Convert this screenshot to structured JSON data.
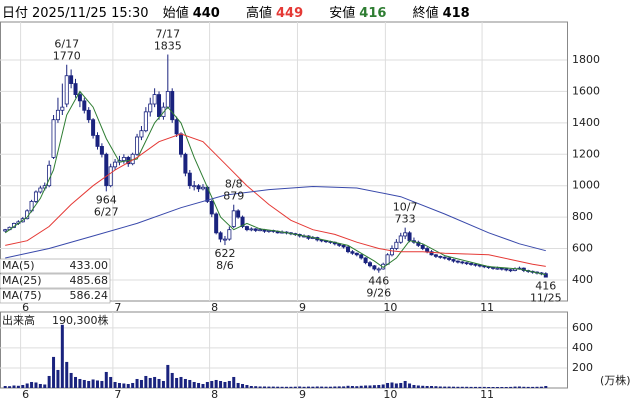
{
  "header": {
    "date_label": "日付",
    "date": "2025/11/25 15:30",
    "open_label": "始値",
    "open": "440",
    "high_label": "高値",
    "high": "449",
    "low_label": "安値",
    "low": "416",
    "close_label": "終値",
    "close": "418"
  },
  "chart_data": [
    {
      "type": "candlestick",
      "ylim": [
        266,
        2042
      ],
      "yticks": [
        400,
        600,
        800,
        1000,
        1200,
        1400,
        1600,
        1800
      ],
      "grid": true,
      "xticks": [
        {
          "value": 4,
          "label": "6"
        },
        {
          "value": 25,
          "label": "7"
        },
        {
          "value": 47,
          "label": "8"
        },
        {
          "value": 67,
          "label": "9"
        },
        {
          "value": 87,
          "label": "10"
        },
        {
          "value": 109,
          "label": "11"
        }
      ],
      "up_color": "#ffffff",
      "down_color": "#1a237e",
      "candles": [
        [
          712,
          725,
          705,
          720
        ],
        [
          720,
          740,
          715,
          735
        ],
        [
          735,
          765,
          730,
          760
        ],
        [
          760,
          780,
          750,
          770
        ],
        [
          770,
          800,
          765,
          790
        ],
        [
          790,
          850,
          785,
          840
        ],
        [
          840,
          910,
          830,
          900
        ],
        [
          900,
          970,
          890,
          960
        ],
        [
          960,
          1000,
          950,
          985
        ],
        [
          985,
          1020,
          970,
          1000
        ],
        [
          1000,
          1160,
          990,
          1130
        ],
        [
          1180,
          1450,
          1170,
          1420
        ],
        [
          1420,
          1560,
          1400,
          1480
        ],
        [
          1480,
          1650,
          1450,
          1500
        ],
        [
          1520,
          1770,
          1500,
          1700
        ],
        [
          1700,
          1740,
          1620,
          1650
        ],
        [
          1650,
          1680,
          1560,
          1580
        ],
        [
          1580,
          1600,
          1500,
          1540
        ],
        [
          1540,
          1560,
          1460,
          1480
        ],
        [
          1480,
          1500,
          1400,
          1420
        ],
        [
          1420,
          1430,
          1300,
          1320
        ],
        [
          1320,
          1340,
          1230,
          1250
        ],
        [
          1250,
          1270,
          1180,
          1200
        ],
        [
          1200,
          1210,
          964,
          1000
        ],
        [
          1000,
          1140,
          990,
          1120
        ],
        [
          1120,
          1170,
          1100,
          1150
        ],
        [
          1150,
          1190,
          1130,
          1160
        ],
        [
          1160,
          1200,
          1140,
          1180
        ],
        [
          1180,
          1190,
          1120,
          1140
        ],
        [
          1140,
          1210,
          1130,
          1200
        ],
        [
          1200,
          1330,
          1190,
          1310
        ],
        [
          1310,
          1380,
          1290,
          1350
        ],
        [
          1350,
          1500,
          1340,
          1470
        ],
        [
          1470,
          1560,
          1440,
          1520
        ],
        [
          1520,
          1620,
          1500,
          1580
        ],
        [
          1580,
          1600,
          1420,
          1440
        ],
        [
          1440,
          1530,
          1420,
          1500
        ],
        [
          1500,
          1835,
          1490,
          1600
        ],
        [
          1600,
          1620,
          1400,
          1420
        ],
        [
          1420,
          1440,
          1310,
          1330
        ],
        [
          1330,
          1340,
          1180,
          1200
        ],
        [
          1200,
          1210,
          1060,
          1080
        ],
        [
          1080,
          1100,
          980,
          1000
        ],
        [
          1000,
          1030,
          970,
          1000
        ],
        [
          1000,
          1010,
          960,
          980
        ],
        [
          980,
          1010,
          970,
          990
        ],
        [
          990,
          1000,
          890,
          900
        ],
        [
          900,
          910,
          800,
          820
        ],
        [
          820,
          830,
          690,
          700
        ],
        [
          700,
          710,
          640,
          660
        ],
        [
          660,
          680,
          622,
          660
        ],
        [
          660,
          740,
          650,
          720
        ],
        [
          740,
          879,
          730,
          840
        ],
        [
          840,
          850,
          790,
          800
        ],
        [
          800,
          810,
          730,
          740
        ],
        [
          740,
          745,
          710,
          720
        ],
        [
          720,
          735,
          710,
          725
        ],
        [
          725,
          730,
          705,
          715
        ],
        [
          715,
          730,
          710,
          720
        ],
        [
          720,
          725,
          700,
          710
        ],
        [
          710,
          720,
          700,
          715
        ],
        [
          715,
          720,
          700,
          710
        ],
        [
          710,
          715,
          695,
          700
        ],
        [
          700,
          715,
          695,
          705
        ],
        [
          705,
          710,
          690,
          700
        ],
        [
          700,
          705,
          685,
          695
        ],
        [
          695,
          700,
          680,
          690
        ],
        [
          690,
          695,
          670,
          680
        ],
        [
          680,
          690,
          670,
          680
        ],
        [
          680,
          685,
          655,
          665
        ],
        [
          665,
          680,
          660,
          670
        ],
        [
          670,
          675,
          645,
          655
        ],
        [
          655,
          660,
          640,
          650
        ],
        [
          650,
          655,
          635,
          645
        ],
        [
          645,
          650,
          630,
          640
        ],
        [
          640,
          645,
          620,
          630
        ],
        [
          630,
          635,
          610,
          620
        ],
        [
          620,
          625,
          600,
          610
        ],
        [
          610,
          615,
          570,
          580
        ],
        [
          580,
          590,
          560,
          570
        ],
        [
          570,
          575,
          550,
          560
        ],
        [
          560,
          565,
          530,
          540
        ],
        [
          540,
          545,
          500,
          510
        ],
        [
          510,
          520,
          480,
          490
        ],
        [
          490,
          495,
          460,
          470
        ],
        [
          470,
          480,
          446,
          470
        ],
        [
          470,
          510,
          465,
          500
        ],
        [
          500,
          570,
          495,
          560
        ],
        [
          560,
          620,
          550,
          600
        ],
        [
          600,
          660,
          590,
          640
        ],
        [
          640,
          700,
          630,
          680
        ],
        [
          680,
          733,
          660,
          700
        ],
        [
          700,
          710,
          640,
          650
        ],
        [
          650,
          670,
          630,
          640
        ],
        [
          640,
          650,
          610,
          620
        ],
        [
          620,
          630,
          590,
          600
        ],
        [
          600,
          610,
          570,
          580
        ],
        [
          580,
          590,
          555,
          560
        ],
        [
          560,
          565,
          540,
          550
        ],
        [
          550,
          555,
          535,
          545
        ],
        [
          545,
          550,
          530,
          540
        ],
        [
          540,
          545,
          520,
          530
        ],
        [
          530,
          535,
          510,
          520
        ],
        [
          520,
          525,
          505,
          515
        ],
        [
          515,
          520,
          500,
          510
        ],
        [
          510,
          515,
          495,
          505
        ],
        [
          505,
          510,
          490,
          500
        ],
        [
          500,
          505,
          485,
          495
        ],
        [
          495,
          500,
          480,
          490
        ],
        [
          490,
          495,
          475,
          485
        ],
        [
          485,
          490,
          470,
          480
        ],
        [
          480,
          485,
          465,
          475
        ],
        [
          475,
          485,
          465,
          475
        ],
        [
          475,
          480,
          460,
          470
        ],
        [
          470,
          475,
          455,
          465
        ],
        [
          465,
          470,
          450,
          460
        ],
        [
          460,
          480,
          455,
          470
        ],
        [
          470,
          485,
          465,
          475
        ],
        [
          475,
          480,
          450,
          460
        ],
        [
          460,
          465,
          445,
          455
        ],
        [
          455,
          460,
          440,
          450
        ],
        [
          450,
          455,
          435,
          445
        ],
        [
          445,
          450,
          430,
          440
        ],
        [
          440,
          449,
          416,
          418
        ]
      ],
      "series": [
        {
          "name": "MA(5)",
          "current": "433.00",
          "color": "#2e7d32",
          "x": [
            0,
            5,
            8,
            11,
            14,
            17,
            20,
            23,
            26,
            30,
            34,
            37,
            40,
            43,
            46,
            49,
            52,
            55,
            58,
            62,
            70,
            78,
            84,
            86,
            89,
            92,
            95,
            100,
            110,
            117,
            123
          ],
          "values": [
            700,
            800,
            920,
            1100,
            1450,
            1600,
            1500,
            1300,
            1150,
            1170,
            1400,
            1500,
            1400,
            1180,
            990,
            800,
            720,
            760,
            725,
            710,
            670,
            620,
            520,
            480,
            540,
            650,
            630,
            555,
            485,
            470,
            433
          ]
        },
        {
          "name": "MA(25)",
          "current": "485.68",
          "color": "#e53935",
          "x": [
            0,
            5,
            10,
            15,
            20,
            25,
            30,
            35,
            40,
            45,
            50,
            55,
            60,
            65,
            70,
            75,
            80,
            85,
            88,
            90,
            95,
            100,
            110,
            115,
            120,
            123
          ],
          "values": [
            620,
            650,
            740,
            880,
            1000,
            1100,
            1180,
            1280,
            1330,
            1280,
            1140,
            1000,
            880,
            780,
            720,
            690,
            640,
            600,
            585,
            580,
            580,
            570,
            560,
            530,
            500,
            486
          ]
        },
        {
          "name": "MA(75)",
          "current": "586.24",
          "color": "#3949ab",
          "x": [
            0,
            10,
            20,
            30,
            40,
            50,
            60,
            70,
            80,
            90,
            100,
            110,
            117,
            123
          ],
          "values": [
            540,
            600,
            680,
            760,
            860,
            940,
            975,
            995,
            985,
            930,
            820,
            700,
            630,
            586
          ]
        }
      ],
      "annotations": [
        {
          "lines": [
            "6/17",
            "1770"
          ],
          "candle": 14,
          "pos": "above"
        },
        {
          "lines": [
            "7/17",
            "1835"
          ],
          "candle": 37,
          "pos": "above"
        },
        {
          "lines": [
            "964",
            "6/27"
          ],
          "candle": 23,
          "pos": "below"
        },
        {
          "lines": [
            "8/8",
            "879"
          ],
          "candle": 52,
          "pos": "above"
        },
        {
          "lines": [
            "622",
            "8/6"
          ],
          "candle": 50,
          "pos": "below"
        },
        {
          "lines": [
            "10/7",
            "733"
          ],
          "candle": 91,
          "pos": "above"
        },
        {
          "lines": [
            "446",
            "9/26"
          ],
          "candle": 85,
          "pos": "below"
        },
        {
          "lines": [
            "416",
            "11/25"
          ],
          "candle": 123,
          "pos": "below"
        }
      ]
    },
    {
      "type": "bar",
      "label": "出来高",
      "current": "190,300株",
      "unit": "(万株)",
      "ylim": [
        0,
        758
      ],
      "yticks": [
        200,
        400,
        600
      ],
      "grid": true,
      "color": "#1a237e",
      "values": [
        20,
        18,
        25,
        22,
        30,
        45,
        60,
        55,
        40,
        35,
        120,
        310,
        180,
        630,
        260,
        150,
        110,
        90,
        80,
        70,
        85,
        75,
        70,
        160,
        110,
        60,
        50,
        45,
        40,
        50,
        90,
        80,
        120,
        100,
        110,
        90,
        70,
        230,
        150,
        100,
        110,
        90,
        80,
        60,
        50,
        40,
        60,
        70,
        80,
        70,
        60,
        70,
        110,
        50,
        40,
        30,
        20,
        18,
        15,
        15,
        14,
        14,
        13,
        12,
        12,
        12,
        13,
        15,
        12,
        14,
        13,
        15,
        14,
        13,
        13,
        15,
        16,
        16,
        22,
        20,
        18,
        22,
        25,
        25,
        28,
        30,
        35,
        50,
        55,
        45,
        50,
        70,
        45,
        30,
        25,
        22,
        20,
        20,
        18,
        15,
        14,
        14,
        13,
        12,
        12,
        12,
        11,
        11,
        11,
        11,
        10,
        10,
        10,
        10,
        10,
        11,
        14,
        15,
        12,
        11,
        11,
        12,
        13,
        20
      ]
    }
  ]
}
